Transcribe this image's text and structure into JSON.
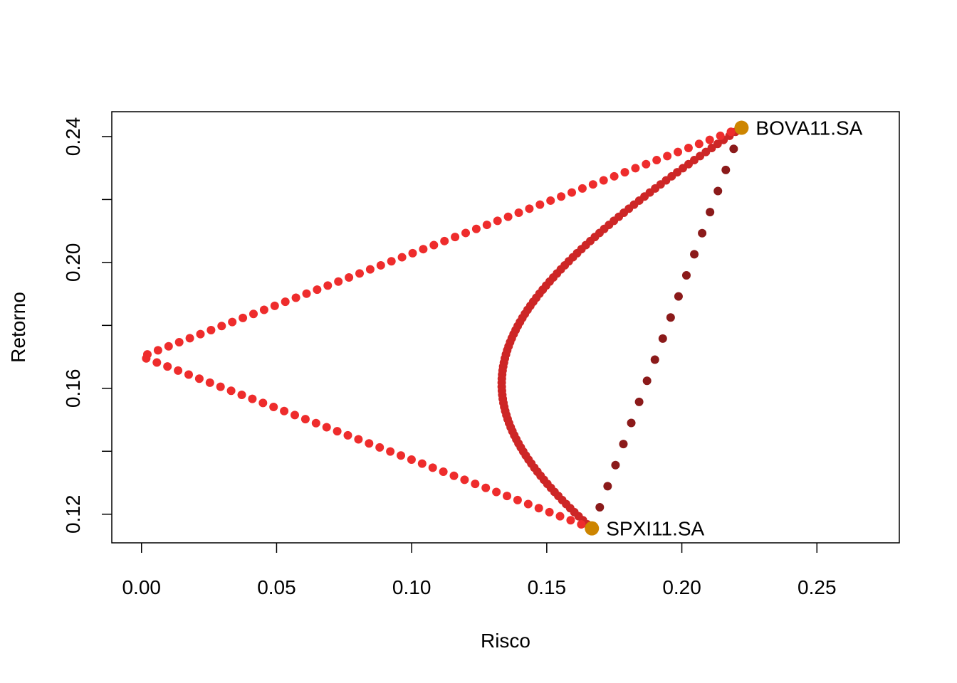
{
  "chart_data": {
    "type": "scatter",
    "xlabel": "Risco",
    "ylabel": "Retorno",
    "xlim": [
      -0.011,
      0.2805
    ],
    "ylim": [
      0.1109,
      0.2479
    ],
    "x_ticks": [
      "0.00",
      "0.05",
      "0.10",
      "0.15",
      "0.20",
      "0.25"
    ],
    "x_tick_values": [
      0.0,
      0.05,
      0.1,
      0.15,
      0.2,
      0.25
    ],
    "y_ticks": [
      "0.12",
      "0.16",
      "0.20",
      "0.24"
    ],
    "y_tick_values": [
      0.12,
      0.16,
      0.2,
      0.24
    ],
    "y_minor_tick_values": [
      0.14,
      0.18,
      0.22
    ],
    "grid": false,
    "assets": [
      {
        "label": "BOVA11.SA",
        "x": 0.2221,
        "y": 0.2428,
        "color": "#CD8500"
      },
      {
        "label": "SPXI11.SA",
        "x": 0.1667,
        "y": 0.1155,
        "color": "#CD8500"
      }
    ],
    "curves": [
      {
        "correlation": -1,
        "color": "#EE2C2C",
        "shape": "two-segment",
        "min_risk_x": 0.0,
        "min_risk_y": 0.1707,
        "points": 100
      },
      {
        "correlation": 0,
        "color": "#CD2626",
        "shape": "hyperbola",
        "min_risk_x": 0.1255,
        "min_risk_y": 0.1635,
        "points": 100
      },
      {
        "correlation": 1,
        "color": "#8B1A1A",
        "shape": "line",
        "points": 20
      }
    ]
  }
}
